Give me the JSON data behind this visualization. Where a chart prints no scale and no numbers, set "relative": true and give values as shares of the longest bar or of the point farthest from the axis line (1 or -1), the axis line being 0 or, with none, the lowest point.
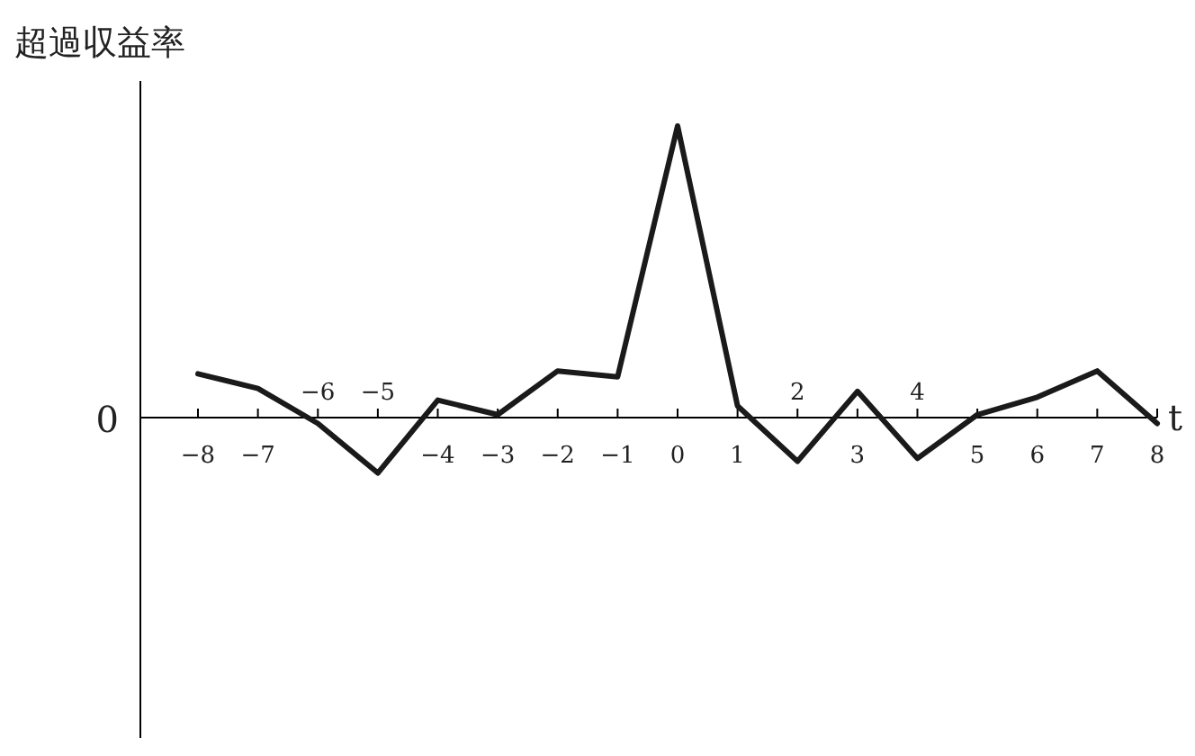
{
  "chart_data": {
    "type": "line",
    "ylabel": "超過収益率",
    "xlabel": "t",
    "relative": true,
    "color": "#1a1a1a",
    "categories": [
      "−8",
      "−7",
      "−6",
      "−5",
      "−4",
      "−3",
      "−2",
      "−1",
      "0",
      "1",
      "2",
      "3",
      "4",
      "5",
      "6",
      "7",
      "8"
    ],
    "values": [
      0.15,
      0.1,
      -0.02,
      -0.19,
      0.06,
      0.01,
      0.16,
      0.14,
      1,
      0.04,
      -0.15,
      0.09,
      -0.14,
      0.01,
      0.07,
      0.16,
      -0.02
    ],
    "annotations": [
      "0"
    ]
  }
}
